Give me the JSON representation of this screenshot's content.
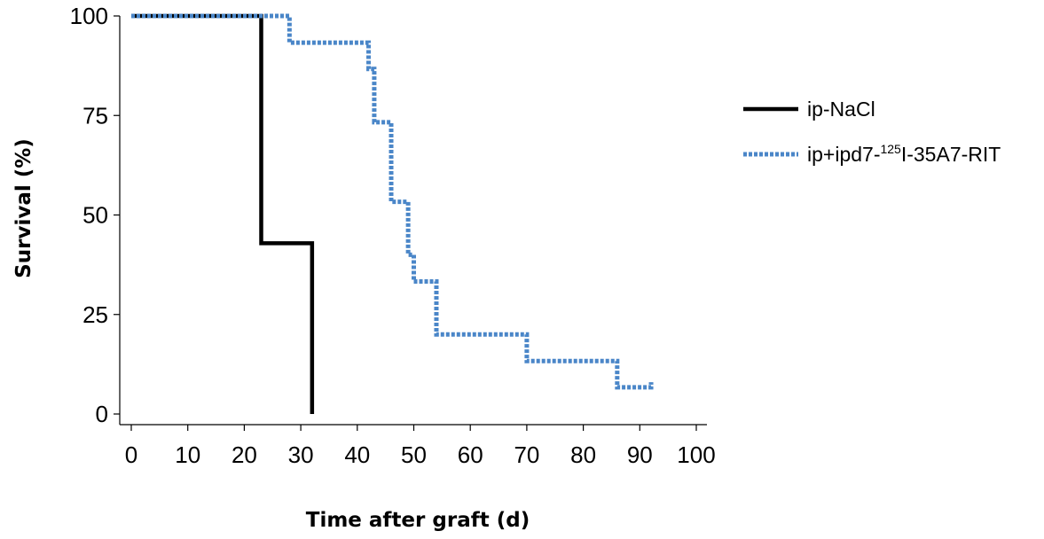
{
  "chart_data": {
    "type": "line",
    "subtype": "kaplan-meier-step",
    "title": "",
    "xlabel": "Time after graft (d)",
    "ylabel": "Survival (%)",
    "xlim": [
      0,
      100
    ],
    "ylim": [
      0,
      100
    ],
    "x_ticks": [
      0,
      10,
      20,
      30,
      40,
      50,
      60,
      70,
      80,
      90,
      100
    ],
    "y_ticks": [
      0,
      25,
      50,
      75,
      100
    ],
    "grid": false,
    "legend_position": "right",
    "series": [
      {
        "name": "ip-NaCl",
        "legend": {
          "pre": "ip-NaCl",
          "sup": "",
          "post": ""
        },
        "color": "#000000",
        "style": "solid",
        "x": [
          0,
          23,
          32
        ],
        "y": [
          100,
          42.9,
          0
        ]
      },
      {
        "name": "ip+ipd7-125I-35A7-RIT",
        "legend": {
          "pre": "ip+ipd7-",
          "sup": "125",
          "post": "I-35A7-RIT"
        },
        "color": "#4a86c8",
        "style": "dotted",
        "x": [
          0,
          28,
          42,
          43,
          46,
          49,
          50,
          54,
          70,
          86,
          92
        ],
        "y": [
          100,
          93.3,
          86.7,
          73.3,
          53.3,
          40,
          33.3,
          20,
          13.3,
          6.7,
          8
        ]
      }
    ]
  }
}
